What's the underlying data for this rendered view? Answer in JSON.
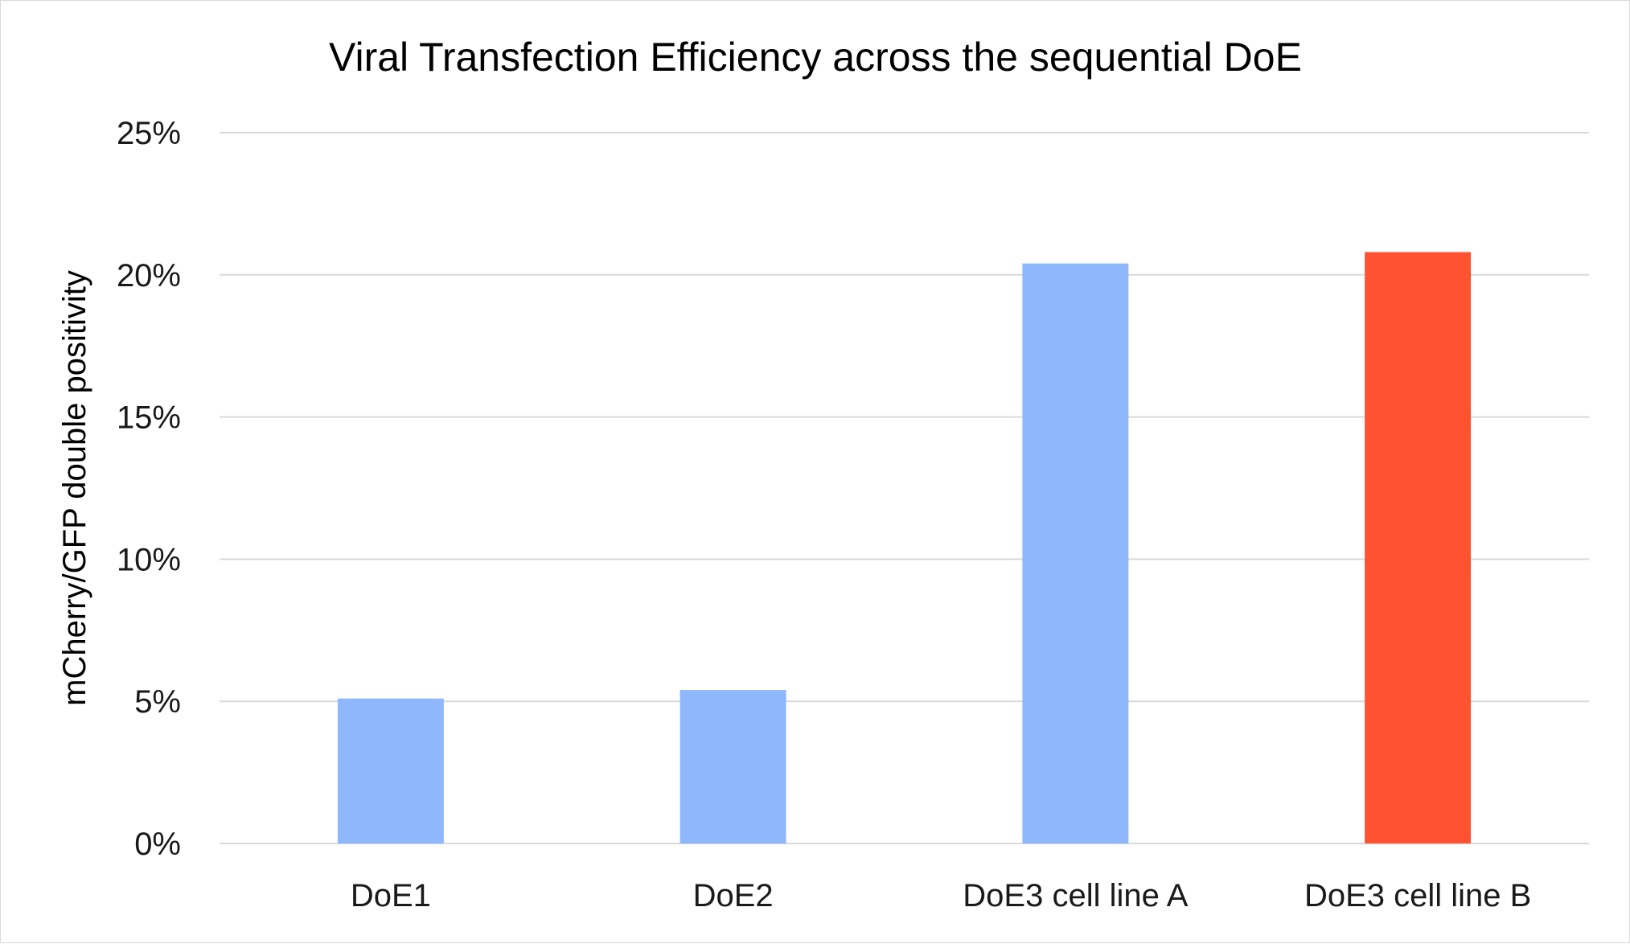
{
  "chart_data": {
    "type": "bar",
    "title": "Viral Transfection Efficiency across the sequential DoE",
    "xlabel": "",
    "ylabel": "mCherry/GFP double positivity",
    "categories": [
      "DoE1",
      "DoE2",
      "DoE3 cell line A",
      "DoE3 cell line B"
    ],
    "values": [
      5.1,
      5.4,
      20.4,
      20.8
    ],
    "bar_colors": [
      "#8fb8fc",
      "#8fb8fc",
      "#8fb8fc",
      "#fe5230"
    ],
    "ylim": [
      0,
      25
    ],
    "yticks": [
      0,
      5,
      10,
      15,
      20,
      25
    ],
    "ytick_labels": [
      "0%",
      "5%",
      "10%",
      "15%",
      "20%",
      "25%"
    ],
    "grid": true,
    "legend": "none"
  }
}
